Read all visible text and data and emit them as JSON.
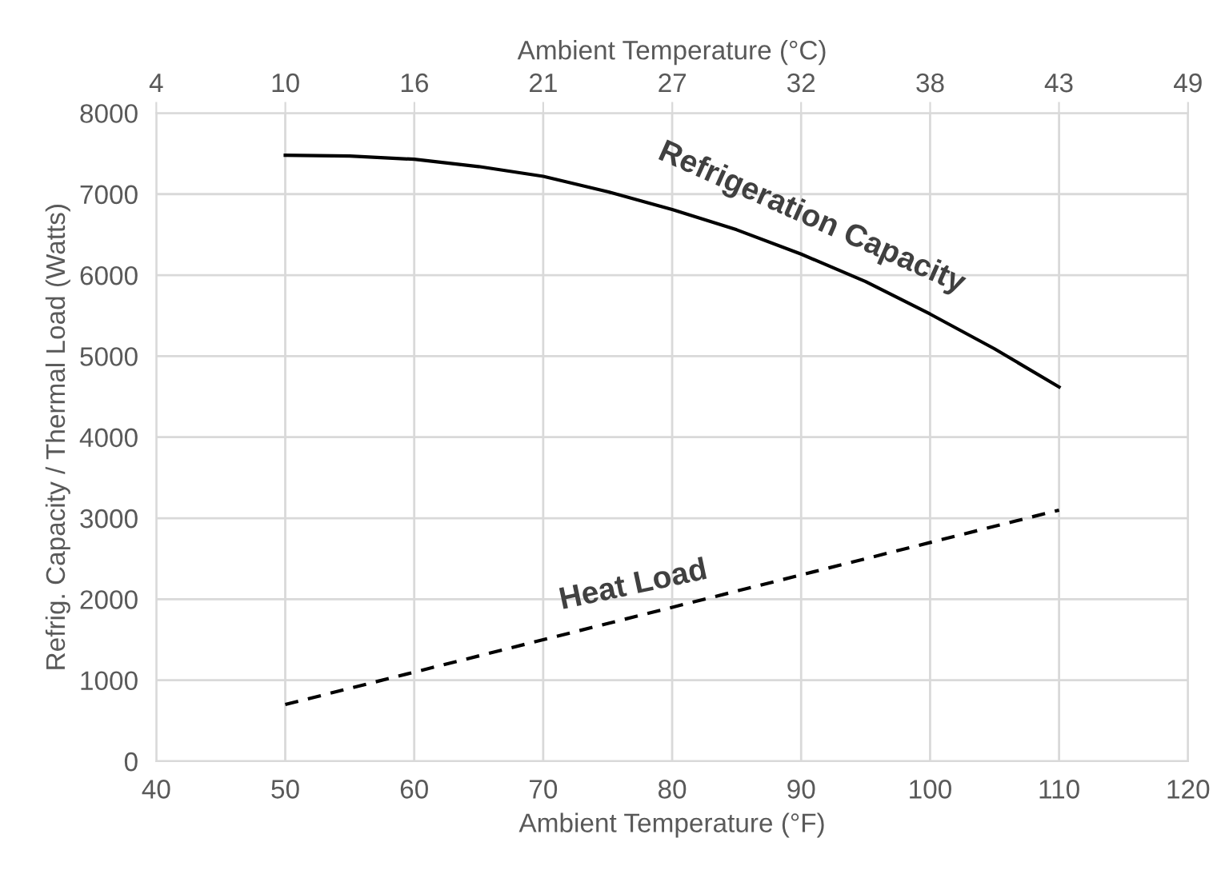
{
  "chart_data": {
    "type": "line",
    "xlabel": "Ambient Temperature (°F)",
    "ylabel": "Refrig. Capacity / Thermal Load (Watts)",
    "x2label": "Ambient Temperature (°C)",
    "series": [
      {
        "name": "Refrigeration Capacity",
        "color": "#000000",
        "line_style": "solid",
        "x": [
          50,
          55,
          60,
          65,
          70,
          75,
          80,
          85,
          90,
          95,
          100,
          105,
          110
        ],
        "values": [
          7480,
          7470,
          7430,
          7340,
          7220,
          7030,
          6810,
          6560,
          6260,
          5920,
          5520,
          5090,
          4620
        ]
      },
      {
        "name": "Heat Load",
        "color": "#000000",
        "line_style": "dashed",
        "x": [
          50,
          110
        ],
        "values": [
          700,
          3100
        ]
      }
    ],
    "xlim": [
      40,
      120
    ],
    "xticks": [
      40,
      50,
      60,
      70,
      80,
      90,
      100,
      110,
      120
    ],
    "ylim": [
      0,
      8000
    ],
    "yticks": [
      0,
      1000,
      2000,
      3000,
      4000,
      5000,
      6000,
      7000,
      8000
    ],
    "x2lim": [
      4.44,
      48.89
    ],
    "x2ticks": [
      {
        "value": 4.44,
        "label": "4"
      },
      {
        "value": 10,
        "label": "10"
      },
      {
        "value": 15.56,
        "label": "16"
      },
      {
        "value": 21.11,
        "label": "21"
      },
      {
        "value": 26.67,
        "label": "27"
      },
      {
        "value": 32.22,
        "label": "32"
      },
      {
        "value": 37.78,
        "label": "38"
      },
      {
        "value": 43.33,
        "label": "43"
      },
      {
        "value": 48.89,
        "label": "49"
      }
    ],
    "grid": true,
    "legend": false,
    "marker": "none"
  }
}
